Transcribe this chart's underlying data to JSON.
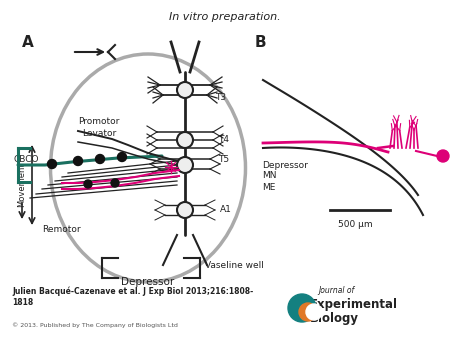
{
  "title": "In vitro preparation.",
  "bg_color": "#ffffff",
  "nerve_dark": "#222222",
  "nerve_magenta": "#dd0077",
  "nerve_teal": "#1a7060",
  "dot_color": "#111111",
  "circle_color": "#aaaaaa",
  "citation": "Julien Bacqué-Cazenave et al. J Exp Biol 2013;216:1808-\n1818",
  "copyright": "© 2013. Published by The Company of Biologists Ltd",
  "scale_label": "500 μm"
}
